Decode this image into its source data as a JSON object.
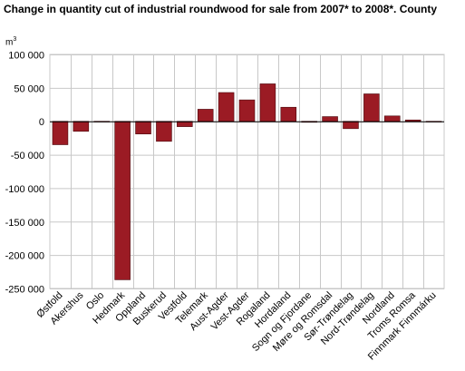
{
  "title": "Change in quantity cut of industrial roundwood for sale from 2007* to 2008*. County",
  "unit_base": "m",
  "unit_exp": "3",
  "colors": {
    "bar": "#9b1b24",
    "bar_stroke": "#4a0a0e",
    "grid": "#c8c8c8",
    "axis": "#000000"
  },
  "chart_data": {
    "type": "bar",
    "title": "Change in quantity cut of industrial roundwood for sale from 2007* to 2008*. County",
    "ylabel": "m3",
    "xlabel": "",
    "ylim": [
      -250000,
      100000
    ],
    "yticks": [
      100000,
      50000,
      0,
      -50000,
      -100000,
      -150000,
      -200000,
      -250000
    ],
    "ytick_labels": [
      "100 000",
      "50 000",
      "0",
      "-50 000",
      "-100 000",
      "-150 000",
      "-200 000",
      "-250 000"
    ],
    "categories": [
      "Østfold",
      "Akershus",
      "Oslo",
      "Hedmark",
      "Oppland",
      "Buskerud",
      "Vestfold",
      "Telemark",
      "Aust-Agder",
      "Vest-Agder",
      "Rogaland",
      "Hordaland",
      "Sogn og Fjordane",
      "Møre og Romsdal",
      "Sør-Trøndelag",
      "Nord-Trøndelag",
      "Nordland",
      "Troms Romsa",
      "Finnmark Finnmárku"
    ],
    "values": [
      -35000,
      -15000,
      -500,
      -237000,
      -19000,
      -30000,
      -8000,
      18000,
      43000,
      32000,
      56000,
      21000,
      -1500,
      7000,
      -11000,
      41000,
      8000,
      2000,
      0
    ],
    "grid": true,
    "legend": "none"
  }
}
